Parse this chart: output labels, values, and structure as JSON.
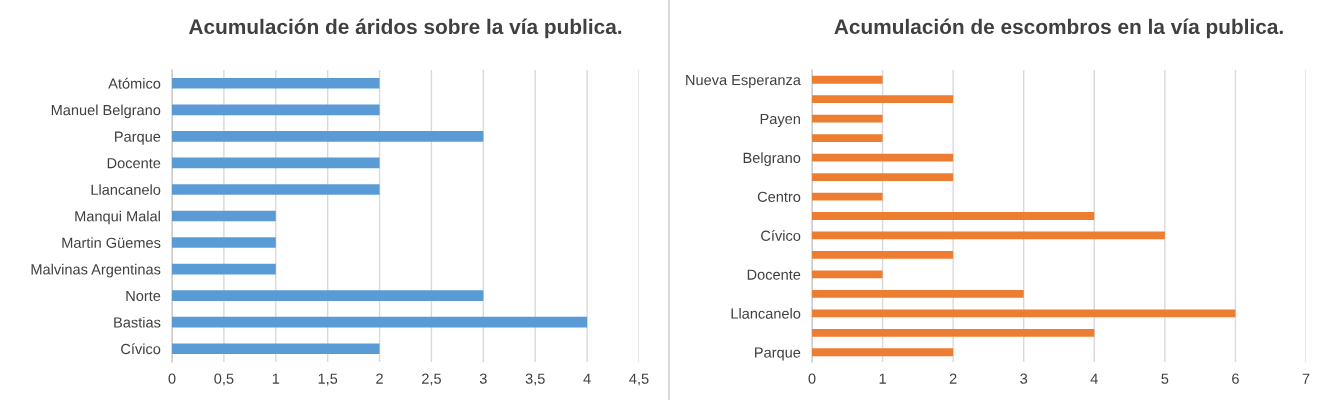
{
  "chart_data": [
    {
      "type": "bar",
      "orientation": "horizontal",
      "title": "Acumulación de áridos sobre la vía publica.",
      "categories": [
        "Atómico",
        "Manuel Belgrano",
        "Parque",
        "Docente",
        "Llancanelo",
        "Manqui Malal",
        "Martin Güemes",
        "Malvinas Argentinas",
        "Norte",
        "Bastias",
        "Cívico"
      ],
      "values": [
        2,
        2,
        3,
        2,
        2,
        1,
        1,
        1,
        3,
        4,
        2
      ],
      "color": "#5b9bd5",
      "xlim": [
        0,
        4.5
      ],
      "xticks": [
        0,
        {
          "value": 0.5,
          "label": "0,5"
        },
        1,
        {
          "value": 1.5,
          "label": "1,5"
        },
        2,
        {
          "value": 2.5,
          "label": "2,5"
        },
        3,
        {
          "value": 3.5,
          "label": "3,5"
        },
        4,
        {
          "value": 4.5,
          "label": "4,5"
        }
      ],
      "grid": "x"
    },
    {
      "type": "bar",
      "orientation": "horizontal",
      "title": "Acumulación de escombros en la vía publica.",
      "categories": [
        "Nueva Esperanza",
        null,
        "Payen",
        null,
        "Belgrano",
        null,
        "Centro",
        null,
        "Cívico",
        null,
        "Docente",
        null,
        "Llancanelo",
        null,
        "Parque"
      ],
      "values": [
        1,
        2,
        1,
        1,
        2,
        2,
        1,
        4,
        5,
        2,
        1,
        3,
        6,
        4,
        2
      ],
      "color": "#ed7d31",
      "xlim": [
        0,
        7
      ],
      "xticks": [
        0,
        1,
        2,
        3,
        4,
        5,
        6,
        7
      ],
      "grid": "x"
    }
  ]
}
